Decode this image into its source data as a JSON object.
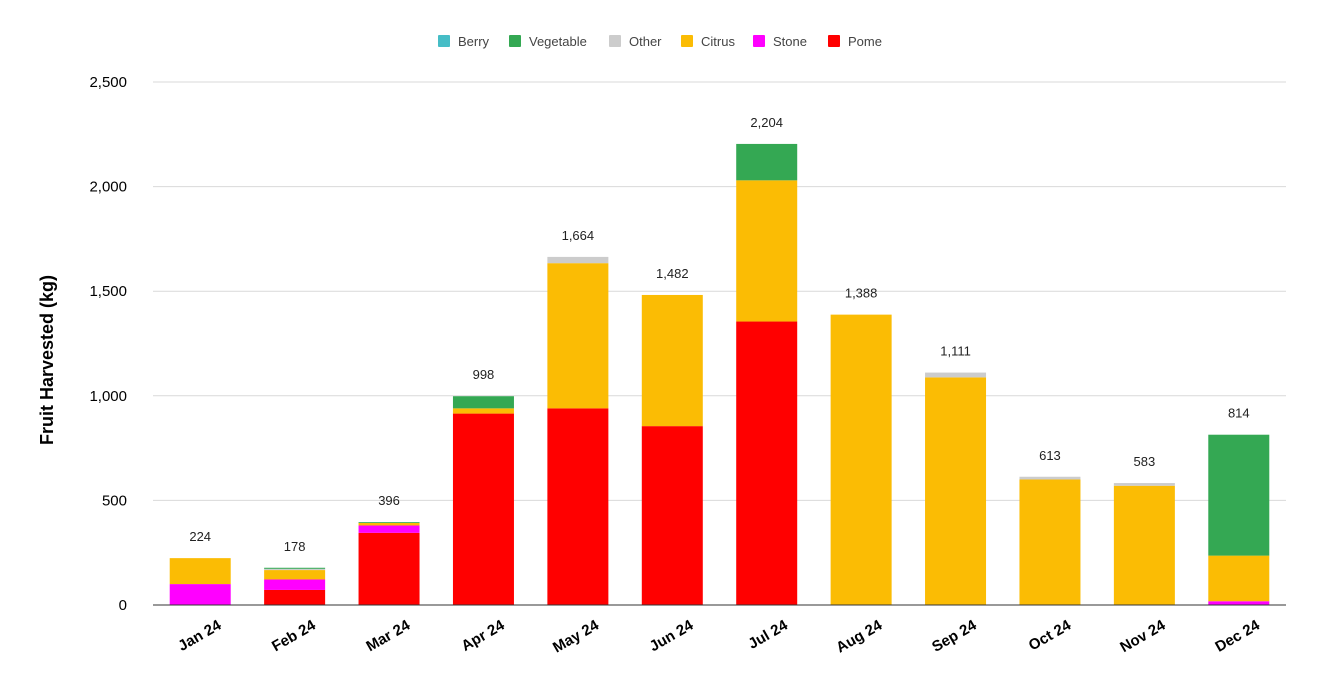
{
  "chart_data": {
    "type": "bar",
    "stacked": true,
    "title": "",
    "xlabel": "",
    "ylabel": "Fruit Harvested (kg)",
    "ylim": [
      0,
      2500
    ],
    "yticks": [
      "0",
      "500",
      "1,000",
      "1,500",
      "2,000",
      "2,500"
    ],
    "ytick_values": [
      0,
      500,
      1000,
      1500,
      2000,
      2500
    ],
    "grid": true,
    "legend_position": "top",
    "categories": [
      "Jan 24",
      "Feb 24",
      "Mar 24",
      "Apr 24",
      "May 24",
      "Jun 24",
      "Jul 24",
      "Aug 24",
      "Sep 24",
      "Oct 24",
      "Nov 24",
      "Dec 24"
    ],
    "totals": [
      224,
      178,
      396,
      998,
      1664,
      1482,
      2204,
      1388,
      1111,
      613,
      583,
      814
    ],
    "total_labels": [
      "224",
      "178",
      "396",
      "998",
      "1,664",
      "1,482",
      "2,204",
      "1,388",
      "1,111",
      "613",
      "583",
      "814"
    ],
    "legend_order": [
      "Berry",
      "Vegetable",
      "Other",
      "Citrus",
      "Stone",
      "Pome"
    ],
    "series": [
      {
        "name": "Pome",
        "color": "#ff0000",
        "values": [
          0,
          72,
          345,
          915,
          940,
          855,
          1355,
          0,
          0,
          0,
          0,
          0
        ]
      },
      {
        "name": "Stone",
        "color": "#ff00ff",
        "values": [
          100,
          50,
          35,
          0,
          0,
          0,
          0,
          0,
          0,
          0,
          0,
          18
        ]
      },
      {
        "name": "Citrus",
        "color": "#fbbc04",
        "values": [
          124,
          45,
          12,
          25,
          694,
          627,
          675,
          1388,
          1088,
          600,
          570,
          218
        ]
      },
      {
        "name": "Other",
        "color": "#cccccc",
        "values": [
          0,
          6,
          0,
          0,
          30,
          0,
          0,
          0,
          23,
          13,
          13,
          0
        ]
      },
      {
        "name": "Vegetable",
        "color": "#34a853",
        "values": [
          0,
          5,
          4,
          58,
          0,
          0,
          174,
          0,
          0,
          0,
          0,
          578
        ]
      },
      {
        "name": "Berry",
        "color": "#46bdc6",
        "values": [
          0,
          0,
          0,
          0,
          0,
          0,
          0,
          0,
          0,
          0,
          0,
          0
        ]
      }
    ]
  }
}
